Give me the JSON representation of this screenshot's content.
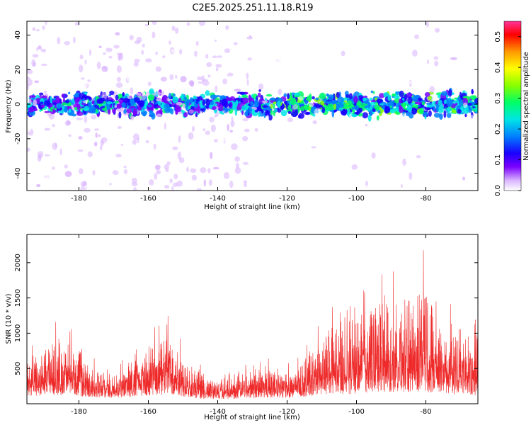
{
  "title": "C2E5.2025.251.11.18.R19",
  "chart_data": [
    {
      "type": "heatmap",
      "xlabel": "Height of straight line (km)",
      "ylabel": "Frequency (Hz)",
      "xlim": [
        -195,
        -65
      ],
      "ylim": [
        -50,
        48
      ],
      "x_ticks": [
        -180,
        -160,
        -140,
        -120,
        -100,
        -80
      ],
      "y_ticks": [
        -40,
        -20,
        0,
        20,
        40
      ],
      "colorbar": {
        "label": "Normalized spectral amplitude",
        "range": [
          0,
          0.55
        ],
        "ticks": [
          0.0,
          0.1,
          0.2,
          0.3,
          0.4,
          0.5
        ],
        "colormap": [
          "#ffffff",
          "#d9b3ff",
          "#7a00ff",
          "#1a00ff",
          "#0080ff",
          "#00e5e5",
          "#00ff66",
          "#88ff00",
          "#ffff00",
          "#ff9900",
          "#ff0000",
          "#ff3399"
        ]
      },
      "band_center_hz": 0,
      "band_halfwidth_hz": 8,
      "grid": false
    },
    {
      "type": "line",
      "xlabel": "Height of straight line (km)",
      "ylabel": "SNR (10 * v/v)",
      "xlim": [
        -195,
        -65
      ],
      "ylim": [
        0,
        2400
      ],
      "x_ticks": [
        -180,
        -160,
        -140,
        -120,
        -100,
        -80
      ],
      "y_ticks": [
        500,
        1000,
        1500,
        2000
      ],
      "series_color": "#ee2a2a",
      "envelope": {
        "x": [
          -195,
          -190,
          -186,
          -182,
          -178,
          -174,
          -170,
          -166,
          -162,
          -158,
          -155,
          -152,
          -148,
          -144,
          -140,
          -136,
          -132,
          -128,
          -124,
          -120,
          -116,
          -112,
          -108,
          -104,
          -100,
          -96,
          -92,
          -88,
          -84,
          -80,
          -77,
          -74,
          -71,
          -68,
          -65
        ],
        "upper": [
          650,
          820,
          1000,
          900,
          650,
          500,
          420,
          600,
          700,
          1000,
          1250,
          1000,
          600,
          420,
          380,
          450,
          520,
          600,
          560,
          520,
          620,
          900,
          1200,
          1100,
          1300,
          1550,
          1800,
          1500,
          1700,
          2100,
          1400,
          1250,
          1100,
          1150,
          1000
        ],
        "base": [
          300,
          330,
          350,
          330,
          280,
          250,
          230,
          270,
          300,
          330,
          350,
          320,
          250,
          200,
          190,
          200,
          230,
          240,
          230,
          230,
          280,
          330,
          380,
          380,
          400,
          450,
          480,
          450,
          440,
          470,
          400,
          380,
          350,
          360,
          330
        ]
      },
      "grid": false
    }
  ]
}
